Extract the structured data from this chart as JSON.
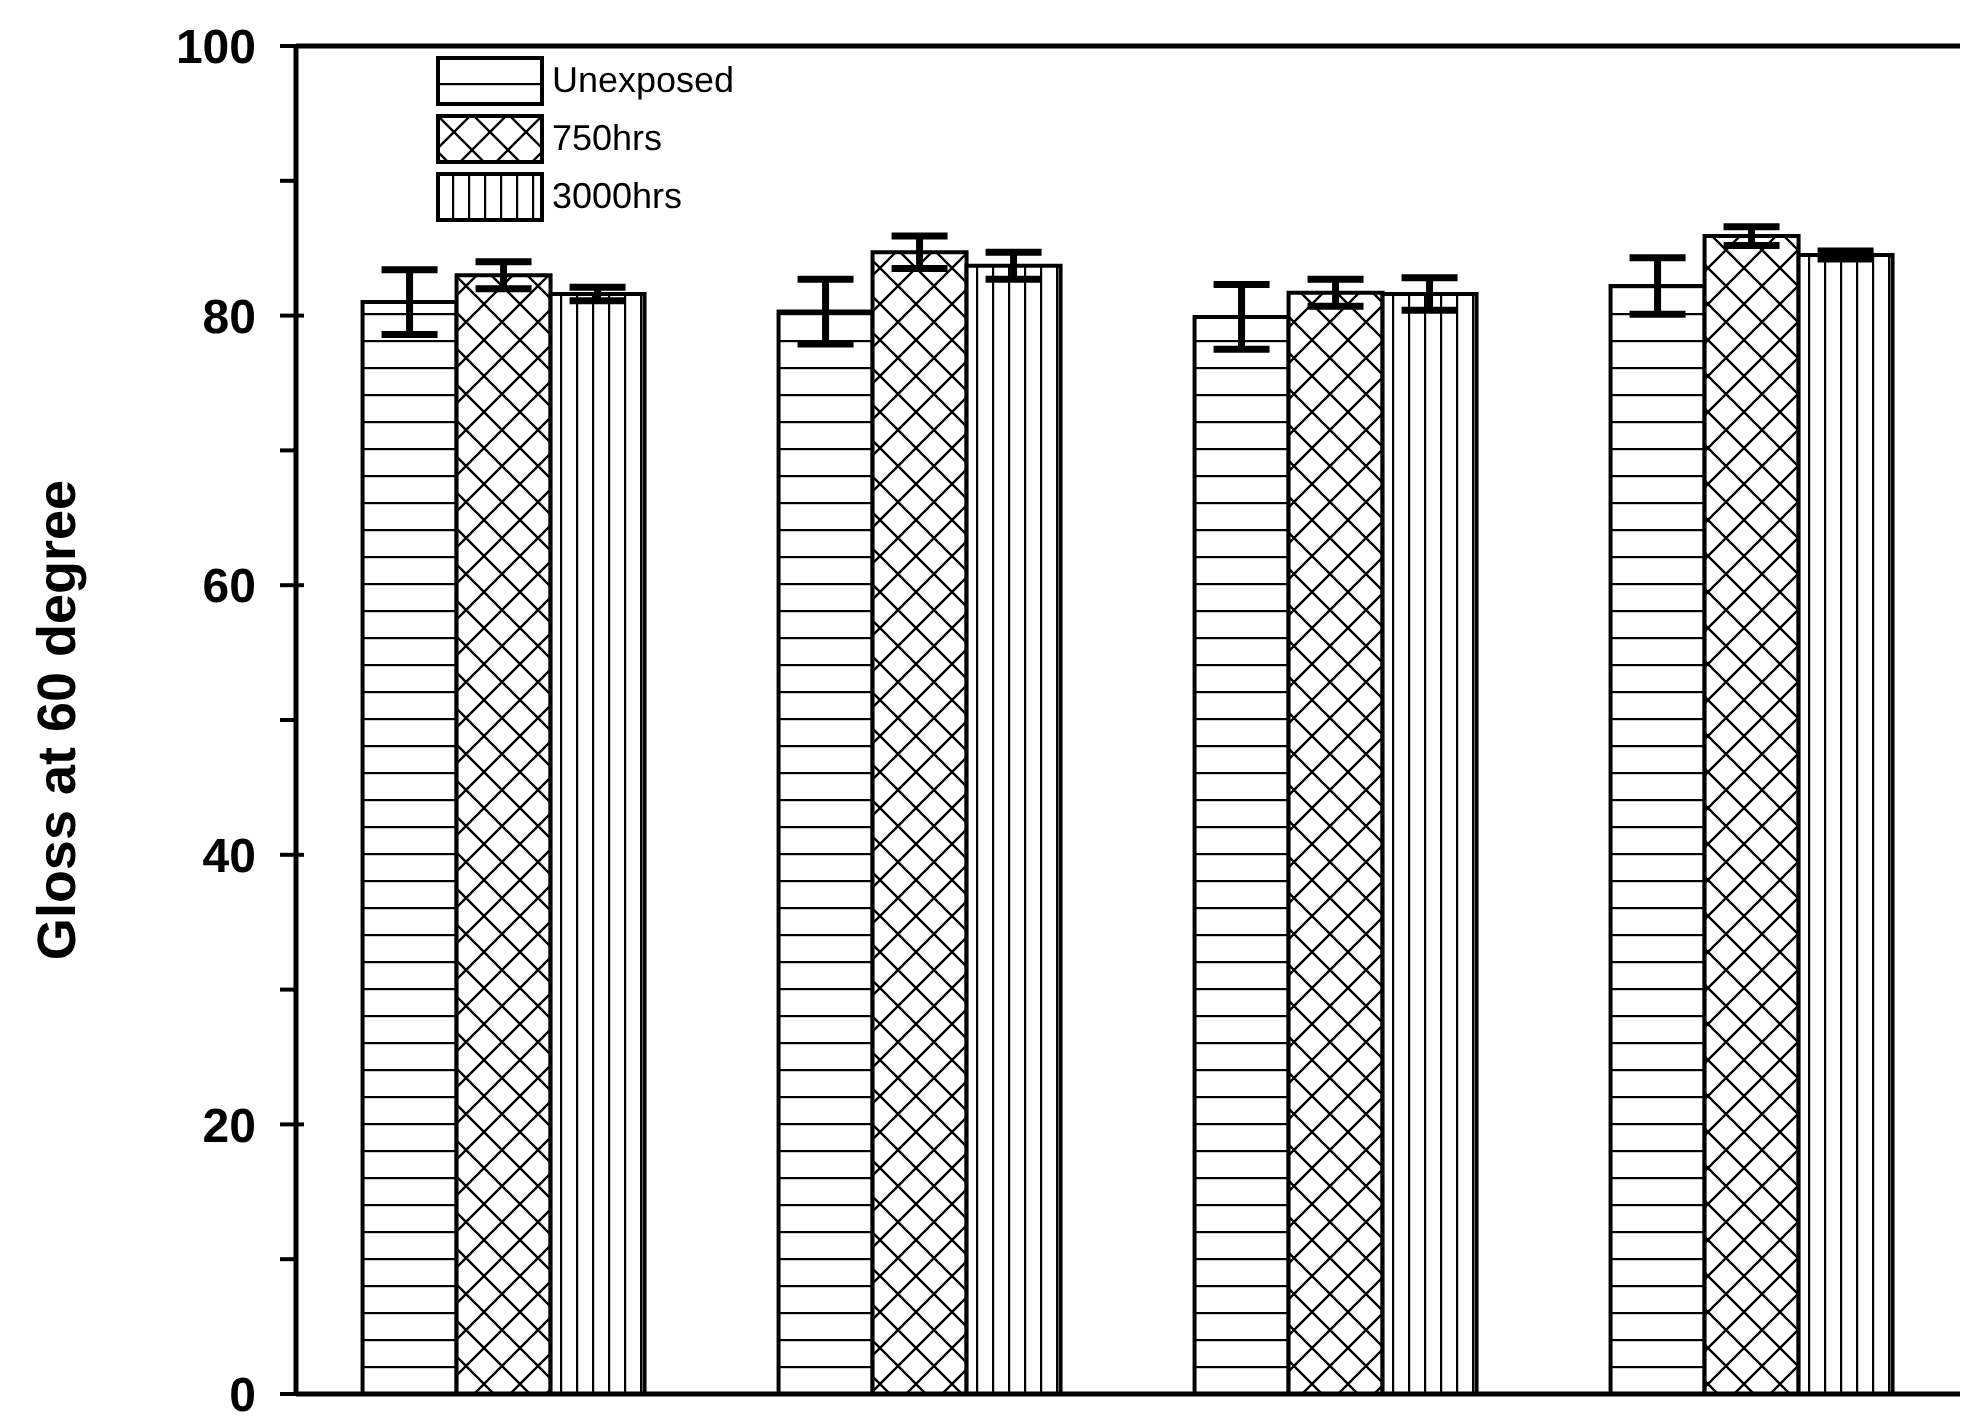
{
  "chart_data": {
    "type": "bar",
    "ylabel": "Gloss at 60 degree",
    "categories": [
      null,
      null,
      null,
      null
    ],
    "series": [
      {
        "name": "Unexposed",
        "color": "#000000",
        "values": [
          81.0,
          80.3,
          79.9,
          82.2
        ],
        "errors": [
          2.4,
          2.4,
          2.4,
          2.1
        ]
      },
      {
        "name": "750hrs",
        "color": "#000000",
        "values": [
          83.0,
          84.7,
          81.7,
          85.9
        ],
        "errors": [
          1.0,
          1.2,
          1.0,
          0.7
        ]
      },
      {
        "name": "3000hrs",
        "color": "#000000",
        "values": [
          81.6,
          83.7,
          81.6,
          84.5
        ],
        "errors": [
          0.5,
          1.0,
          1.2,
          0.3
        ]
      }
    ],
    "ylim": [
      0,
      100
    ],
    "yticks": [
      0,
      {
        "value": 10,
        "label": null
      },
      20,
      {
        "value": 30,
        "label": null
      },
      40,
      {
        "value": 50,
        "label": null
      },
      60,
      {
        "value": 70,
        "label": null
      },
      80,
      {
        "value": 90,
        "label": null
      },
      100
    ],
    "tick_labels": "y",
    "legend": "top left"
  }
}
